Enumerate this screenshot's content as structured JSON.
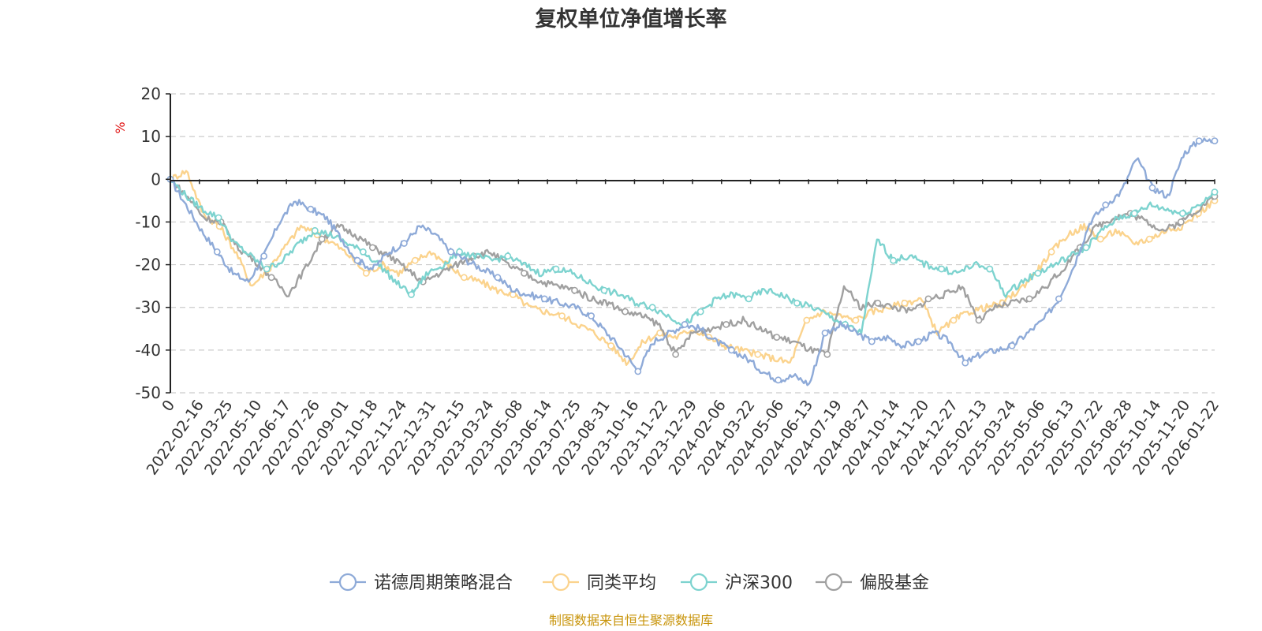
{
  "chart_data": {
    "type": "line",
    "title": "复权单位净值增长率",
    "ylabel": "%",
    "ylim": [
      -50,
      20
    ],
    "yticks": [
      20,
      10,
      0,
      -10,
      -20,
      -30,
      -40,
      -50
    ],
    "grid": true,
    "legend_position": "bottom-center",
    "x_labels": [
      "0",
      "2022-02-16",
      "2022-03-25",
      "2022-05-10",
      "2022-06-17",
      "2022-07-26",
      "2022-09-01",
      "2022-10-18",
      "2022-11-24",
      "2022-12-31",
      "2023-02-15",
      "2023-03-24",
      "2023-05-08",
      "2023-06-14",
      "2023-07-25",
      "2023-08-31",
      "2023-10-16",
      "2023-11-22",
      "2023-12-29",
      "2024-02-06",
      "2024-03-22",
      "2024-05-06",
      "2024-06-13",
      "2024-07-19",
      "2024-08-27",
      "2024-10-14",
      "2024-11-20",
      "2024-12-27",
      "2025-02-13",
      "2025-03-24",
      "2025-05-06",
      "2025-06-13",
      "2025-07-22",
      "2025-08-28",
      "2025-10-14",
      "2025-11-20",
      "2026-01-22"
    ],
    "series": [
      {
        "name": "诺德周期策略混合",
        "color": "#8eaad8",
        "values": [
          0,
          -6,
          -12,
          -17,
          -22,
          -24,
          -18,
          -10,
          -5,
          -7,
          -9,
          -14,
          -19,
          -21,
          -17,
          -15,
          -11,
          -13,
          -17,
          -19,
          -21,
          -23,
          -26,
          -27,
          -28,
          -29,
          -30,
          -32,
          -36,
          -40,
          -45,
          -38,
          -36,
          -34,
          -35,
          -38,
          -40,
          -42,
          -45,
          -47,
          -46,
          -48,
          -36,
          -34,
          -36,
          -38,
          -37,
          -39,
          -38,
          -36,
          -38,
          -43,
          -41,
          -40,
          -39,
          -36,
          -33,
          -28,
          -20,
          -10,
          -6,
          -3,
          5,
          -2,
          -4,
          6,
          9,
          9
        ]
      },
      {
        "name": "同类平均",
        "color": "#fbd38d",
        "values": [
          0,
          2,
          -8,
          -11,
          -17,
          -25,
          -21,
          -16,
          -11,
          -13,
          -15,
          -18,
          -22,
          -20,
          -22,
          -19,
          -17,
          -20,
          -23,
          -24,
          -26,
          -27,
          -30,
          -31,
          -32,
          -34,
          -36,
          -39,
          -43,
          -38,
          -36,
          -37,
          -35,
          -37,
          -39,
          -40,
          -41,
          -42,
          -43,
          -33,
          -31,
          -32,
          -33,
          -31,
          -30,
          -29,
          -28,
          -36,
          -33,
          -31,
          -30,
          -29,
          -26,
          -22,
          -17,
          -13,
          -11,
          -14,
          -12,
          -15,
          -14,
          -12,
          -11,
          -8,
          -5
        ]
      },
      {
        "name": "沪深300",
        "color": "#7dd3cf",
        "values": [
          0,
          -4,
          -7,
          -9,
          -15,
          -18,
          -21,
          -19,
          -15,
          -12,
          -13,
          -15,
          -17,
          -20,
          -24,
          -27,
          -22,
          -20,
          -17,
          -18,
          -19,
          -18,
          -20,
          -22,
          -21,
          -22,
          -24,
          -26,
          -27,
          -29,
          -30,
          -32,
          -34,
          -31,
          -28,
          -27,
          -28,
          -26,
          -27,
          -29,
          -30,
          -32,
          -34,
          -36,
          -14,
          -19,
          -18,
          -20,
          -21,
          -22,
          -20,
          -21,
          -27,
          -24,
          -22,
          -20,
          -18,
          -16,
          -12,
          -9,
          -8,
          -6,
          -7,
          -8,
          -6,
          -3
        ]
      },
      {
        "name": "偏股基金",
        "color": "#a0a0a0",
        "values": [
          0,
          -4,
          -9,
          -10,
          -16,
          -19,
          -23,
          -27,
          -21,
          -14,
          -11,
          -13,
          -16,
          -18,
          -21,
          -24,
          -22,
          -20,
          -18,
          -17,
          -20,
          -22,
          -24,
          -25,
          -26,
          -28,
          -29,
          -31,
          -32,
          -34,
          -41,
          -36,
          -35,
          -34,
          -33,
          -35,
          -37,
          -38,
          -40,
          -41,
          -25,
          -30,
          -29,
          -30,
          -31,
          -28,
          -27,
          -25,
          -33,
          -30,
          -29,
          -28,
          -25,
          -21,
          -16,
          -11,
          -9,
          -8,
          -10,
          -12,
          -10,
          -7,
          -4
        ]
      }
    ]
  },
  "source": "制图数据来自恒生聚源数据库"
}
